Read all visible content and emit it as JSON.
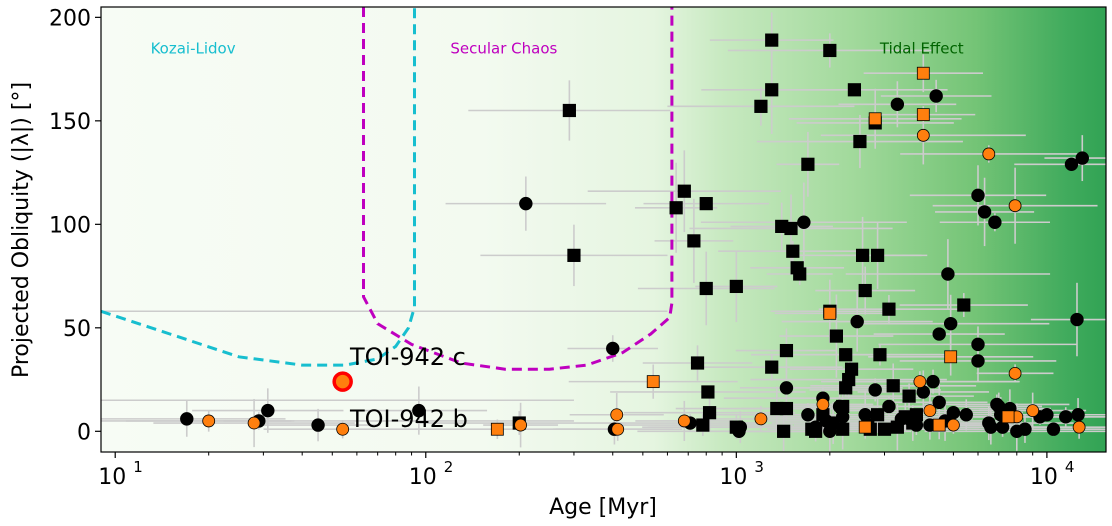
{
  "chart_data": {
    "type": "scatter",
    "xscale": "log",
    "xlim": [
      9,
      15500
    ],
    "ylim": [
      -10,
      205
    ],
    "xlabel": "Age [Myr]",
    "ylabel": "Projected Obliquity (|λ|) [°]",
    "x_ticks": [
      {
        "value": 10,
        "base": "10",
        "exp": "1"
      },
      {
        "value": 100,
        "base": "10",
        "exp": "2"
      },
      {
        "value": 1000,
        "base": "10",
        "exp": "3"
      },
      {
        "value": 10000,
        "base": "10",
        "exp": "4"
      }
    ],
    "y_ticks": [
      0,
      50,
      100,
      150,
      200
    ],
    "regions": [
      {
        "label": "Kozai-Lidov",
        "color": "#17becf",
        "label_x": 13,
        "label_y": 185
      },
      {
        "label": "Secular Chaos",
        "color": "#bf00bf",
        "label_x": 120,
        "label_y": 185
      },
      {
        "label": "Tidal Effect",
        "color": "#006400",
        "label_x": 2900,
        "label_y": 185
      }
    ],
    "kozai_boundary": [
      [
        9,
        58
      ],
      [
        15,
        47
      ],
      [
        25,
        36
      ],
      [
        40,
        32
      ],
      [
        55,
        32
      ],
      [
        70,
        35
      ],
      [
        80,
        41
      ],
      [
        88,
        50
      ],
      [
        92,
        60
      ],
      [
        92,
        205
      ]
    ],
    "secular_boundary": [
      [
        63,
        205
      ],
      [
        63,
        65
      ],
      [
        70,
        52
      ],
      [
        90,
        42
      ],
      [
        130,
        33
      ],
      [
        180,
        30
      ],
      [
        250,
        30
      ],
      [
        330,
        32
      ],
      [
        430,
        38
      ],
      [
        530,
        47
      ],
      [
        610,
        55
      ],
      [
        620,
        62
      ],
      [
        620,
        205
      ]
    ],
    "annotations": [
      {
        "label": "TOI-942 c",
        "x": 57,
        "y": 36
      },
      {
        "label": "TOI-942 b",
        "x": 57,
        "y": 6
      }
    ],
    "highlight": {
      "name": "TOI-942 c",
      "x": 54,
      "y": 24,
      "color": "#ff0000",
      "fill": "#ff7f0e"
    },
    "series": [
      {
        "name": "black circles",
        "marker": "circle",
        "color": "#000000",
        "points": [
          [
            17,
            6
          ],
          [
            29,
            5
          ],
          [
            31,
            10
          ],
          [
            45,
            3
          ],
          [
            95,
            10
          ],
          [
            210,
            110
          ],
          [
            400,
            40
          ],
          [
            405,
            1
          ],
          [
            710,
            4
          ],
          [
            1020,
            0
          ],
          [
            1030,
            2
          ],
          [
            1450,
            21
          ],
          [
            1650,
            101
          ],
          [
            1700,
            8
          ],
          [
            1800,
            2
          ],
          [
            1900,
            16
          ],
          [
            1950,
            5
          ],
          [
            2000,
            0
          ],
          [
            2150,
            12
          ],
          [
            2200,
            7
          ],
          [
            2450,
            53
          ],
          [
            2600,
            8
          ],
          [
            2800,
            20
          ],
          [
            3100,
            12
          ],
          [
            3300,
            158
          ],
          [
            3400,
            6
          ],
          [
            3600,
            6
          ],
          [
            3800,
            3
          ],
          [
            4000,
            19
          ],
          [
            4200,
            3
          ],
          [
            4300,
            24
          ],
          [
            4400,
            162
          ],
          [
            4500,
            47
          ],
          [
            4500,
            14
          ],
          [
            4700,
            5
          ],
          [
            4800,
            76
          ],
          [
            4900,
            52
          ],
          [
            5000,
            9
          ],
          [
            5500,
            8
          ],
          [
            6000,
            34
          ],
          [
            6000,
            42
          ],
          [
            6000,
            114
          ],
          [
            6300,
            106
          ],
          [
            6500,
            4
          ],
          [
            6600,
            2
          ],
          [
            6800,
            101
          ],
          [
            6900,
            13
          ],
          [
            7000,
            12
          ],
          [
            7100,
            8
          ],
          [
            7200,
            2
          ],
          [
            7600,
            11
          ],
          [
            8000,
            0
          ],
          [
            8500,
            1
          ],
          [
            9500,
            7
          ],
          [
            10000,
            8
          ],
          [
            10500,
            1
          ],
          [
            11500,
            7
          ],
          [
            12000,
            129
          ],
          [
            12500,
            54
          ],
          [
            12600,
            8
          ],
          [
            13000,
            132
          ]
        ]
      },
      {
        "name": "black squares",
        "marker": "square",
        "color": "#000000",
        "points": [
          [
            200,
            4
          ],
          [
            290,
            155
          ],
          [
            300,
            85
          ],
          [
            640,
            108
          ],
          [
            680,
            116
          ],
          [
            730,
            92
          ],
          [
            750,
            33
          ],
          [
            780,
            3
          ],
          [
            800,
            110
          ],
          [
            800,
            69
          ],
          [
            810,
            19
          ],
          [
            820,
            9
          ],
          [
            1000,
            70
          ],
          [
            1000,
            2
          ],
          [
            1200,
            157
          ],
          [
            1300,
            189
          ],
          [
            1300,
            165
          ],
          [
            1300,
            31
          ],
          [
            1350,
            11
          ],
          [
            1400,
            99
          ],
          [
            1420,
            0
          ],
          [
            1450,
            39
          ],
          [
            1450,
            11
          ],
          [
            1500,
            98
          ],
          [
            1520,
            87
          ],
          [
            1570,
            79
          ],
          [
            1600,
            76
          ],
          [
            1700,
            129
          ],
          [
            1750,
            1
          ],
          [
            1800,
            0
          ],
          [
            1900,
            8
          ],
          [
            2000,
            184
          ],
          [
            2000,
            58
          ],
          [
            2050,
            4
          ],
          [
            2100,
            46
          ],
          [
            2200,
            12
          ],
          [
            2200,
            1
          ],
          [
            2250,
            21
          ],
          [
            2250,
            37
          ],
          [
            2300,
            25
          ],
          [
            2350,
            30
          ],
          [
            2400,
            165
          ],
          [
            2500,
            140
          ],
          [
            2550,
            85
          ],
          [
            2600,
            68
          ],
          [
            2650,
            3
          ],
          [
            2700,
            1
          ],
          [
            2800,
            149
          ],
          [
            2850,
            8
          ],
          [
            2850,
            85
          ],
          [
            2900,
            37
          ],
          [
            3000,
            1
          ],
          [
            3100,
            59
          ],
          [
            3200,
            22
          ],
          [
            3300,
            2
          ],
          [
            3500,
            7
          ],
          [
            3600,
            17
          ],
          [
            3700,
            4
          ],
          [
            3800,
            8
          ],
          [
            5400,
            61
          ]
        ]
      },
      {
        "name": "orange circles",
        "marker": "circle",
        "color": "#ff7f0e",
        "points": [
          [
            20,
            5
          ],
          [
            28,
            4
          ],
          [
            54,
            1
          ],
          [
            202,
            3
          ],
          [
            412,
            8
          ],
          [
            415,
            1
          ],
          [
            680,
            5
          ],
          [
            1200,
            6
          ],
          [
            1900,
            13
          ],
          [
            3900,
            24
          ],
          [
            4000,
            143
          ],
          [
            4200,
            10
          ],
          [
            5000,
            3
          ],
          [
            6500,
            134
          ],
          [
            7900,
            109
          ],
          [
            7900,
            28
          ],
          [
            8000,
            7
          ],
          [
            9000,
            10
          ],
          [
            12700,
            2
          ]
        ]
      },
      {
        "name": "orange squares",
        "marker": "square",
        "color": "#ff7f0e",
        "points": [
          [
            170,
            1
          ],
          [
            540,
            24
          ],
          [
            2000,
            57
          ],
          [
            2600,
            2
          ],
          [
            2800,
            151
          ],
          [
            4000,
            173
          ],
          [
            4000,
            153
          ],
          [
            4500,
            3
          ],
          [
            4900,
            36
          ],
          [
            7500,
            7
          ]
        ]
      }
    ]
  }
}
